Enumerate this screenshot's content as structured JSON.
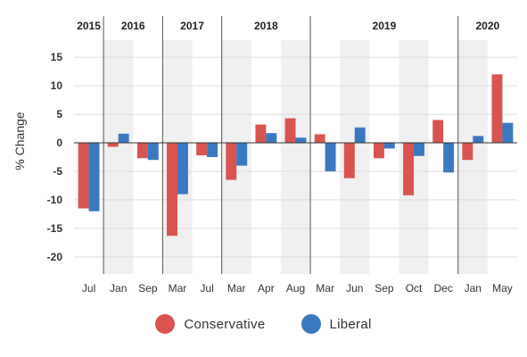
{
  "chart_data": {
    "type": "bar",
    "ylabel": "% Change",
    "ylim": [
      -23,
      18
    ],
    "yticks": [
      15,
      10,
      5,
      0,
      -5,
      -10,
      -15,
      -20
    ],
    "grid": true,
    "legend_position": "bottom-center",
    "categories": [
      "Jul",
      "Jan",
      "Sep",
      "Mar",
      "Jul",
      "Mar",
      "Apr",
      "Aug",
      "Mar",
      "Jun",
      "Sep",
      "Oct",
      "Dec",
      "Jan",
      "May"
    ],
    "year_groups": [
      {
        "label": "2015",
        "start": 0,
        "end": 0
      },
      {
        "label": "2016",
        "start": 1,
        "end": 2
      },
      {
        "label": "2017",
        "start": 3,
        "end": 4
      },
      {
        "label": "2018",
        "start": 5,
        "end": 7
      },
      {
        "label": "2019",
        "start": 8,
        "end": 12
      },
      {
        "label": "2020",
        "start": 13,
        "end": 14
      }
    ],
    "shaded_categories": [
      1,
      3,
      5,
      7,
      9,
      11,
      13
    ],
    "series": [
      {
        "name": "Conservative",
        "color": "#d9534f",
        "values": [
          -11.5,
          -0.7,
          -2.7,
          -16.3,
          -2.2,
          -6.5,
          3.2,
          4.3,
          1.5,
          -6.2,
          -2.7,
          -9.2,
          4.0,
          -3.0,
          12.0
        ]
      },
      {
        "name": "Liberal",
        "color": "#3a78c2",
        "values": [
          -12.0,
          1.6,
          -3.0,
          -9.0,
          -2.5,
          -4.0,
          1.7,
          0.9,
          -5.0,
          2.7,
          -1.0,
          -2.3,
          -5.2,
          1.2,
          3.5
        ]
      }
    ]
  }
}
